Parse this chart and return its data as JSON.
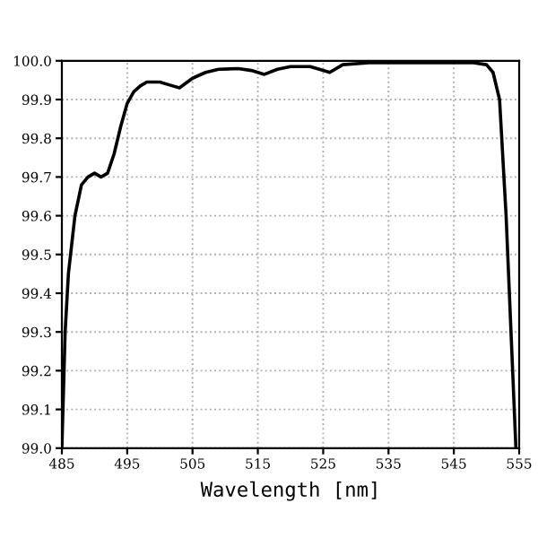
{
  "chart_data": {
    "type": "line",
    "xlabel": "Wavelength [nm]",
    "x": [
      485,
      485.5,
      486,
      487,
      488,
      489,
      490,
      491,
      492,
      493,
      494,
      495,
      496,
      497,
      498,
      500,
      502,
      503,
      505,
      507,
      509,
      512,
      514,
      516,
      518,
      520,
      523,
      525,
      526,
      528,
      532,
      540,
      548,
      550,
      551,
      552,
      553,
      554,
      554.5
    ],
    "series": [
      {
        "color": "#000000",
        "values": [
          99.0,
          99.3,
          99.45,
          99.6,
          99.68,
          99.7,
          99.71,
          99.7,
          99.71,
          99.76,
          99.83,
          99.89,
          99.92,
          99.935,
          99.945,
          99.945,
          99.935,
          99.93,
          99.955,
          99.97,
          99.978,
          99.98,
          99.975,
          99.965,
          99.978,
          99.985,
          99.985,
          99.975,
          99.97,
          99.99,
          99.995,
          99.995,
          99.995,
          99.99,
          99.97,
          99.9,
          99.6,
          99.2,
          99.0
        ]
      }
    ],
    "xlim": [
      485,
      555
    ],
    "ylim": [
      99.0,
      100.0
    ],
    "xticks": [
      485,
      495,
      505,
      515,
      525,
      535,
      545,
      555
    ],
    "yticks": [
      {
        "value": 99,
        "label": "99.0"
      },
      99.1,
      99.2,
      99.3,
      99.4,
      99.5,
      99.6,
      99.7,
      99.8,
      99.9,
      {
        "value": 100,
        "label": "100.0"
      }
    ],
    "grid": true,
    "legend": false,
    "line_style": "solid",
    "marker": "none"
  }
}
